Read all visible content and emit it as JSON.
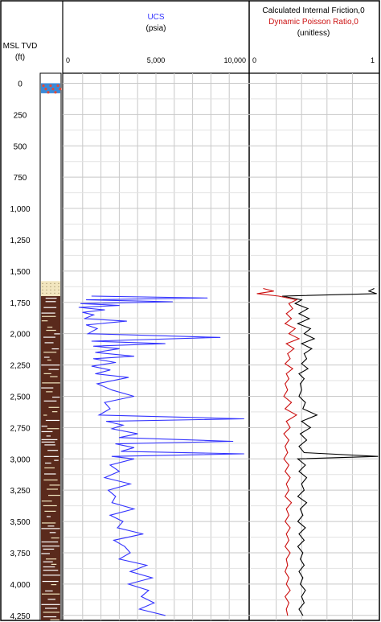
{
  "header": {
    "depth_title_line1": "MSL TVD",
    "depth_title_line2": "(ft)",
    "ucs_title": "UCS",
    "ucs_unit": "(psia)",
    "right_title_line1": "Calculated Internal Friction,0",
    "right_title_line2": "Dynamic Poisson Ratio,0",
    "right_unit": "(unitless)"
  },
  "colors": {
    "ucs": "#3333ff",
    "friction": "#000000",
    "poisson": "#cc1111",
    "lithology_sand": "#f2e6bf",
    "lithology_shale": "#5a2a1c"
  },
  "chart_data": [
    {
      "type": "line",
      "track": "depth",
      "xlabel": "MSL TVD",
      "ylabel": "(ft)",
      "depth_ticks": [
        "0",
        "250",
        "500",
        "750",
        "1,000",
        "1,250",
        "1,500",
        "1,750",
        "2,000",
        "2,250",
        "2,500",
        "2,750",
        "3,000",
        "3,250",
        "3,500",
        "3,750",
        "4,000",
        "4,250"
      ],
      "depth_tick_values": [
        0,
        250,
        500,
        750,
        1000,
        1250,
        1500,
        1750,
        2000,
        2250,
        2500,
        2750,
        3000,
        3250,
        3500,
        3750,
        4000,
        4250
      ],
      "ylim": [
        4290,
        -80
      ]
    },
    {
      "type": "line",
      "title": "UCS",
      "xlabel": "(psia)",
      "x_ticks": [
        "0",
        "5,000",
        "10,000"
      ],
      "x_tick_values": [
        0,
        5000,
        10000
      ],
      "xlim": [
        0,
        10000
      ],
      "series": [
        {
          "name": "UCS",
          "depth": [
            1700,
            1715,
            1730,
            1745,
            1760,
            1775,
            1790,
            1810,
            1830,
            1850,
            1880,
            1900,
            1930,
            1960,
            2000,
            2030,
            2060,
            2080,
            2100,
            2120,
            2150,
            2180,
            2200,
            2230,
            2260,
            2290,
            2320,
            2350,
            2400,
            2450,
            2500,
            2550,
            2600,
            2650,
            2680,
            2700,
            2730,
            2760,
            2800,
            2830,
            2860,
            2880,
            2910,
            2940,
            2960,
            2980,
            3000,
            3050,
            3100,
            3150,
            3200,
            3250,
            3300,
            3350,
            3400,
            3450,
            3500,
            3550,
            3600,
            3650,
            3700,
            3750,
            3800,
            3850,
            3900,
            3950,
            4000,
            4050,
            4100,
            4150,
            4200,
            4250
          ],
          "values": [
            1500,
            7800,
            1200,
            5900,
            900,
            3000,
            800,
            2200,
            1000,
            1600,
            1100,
            3400,
            1200,
            1800,
            1300,
            8500,
            1500,
            5500,
            1600,
            3000,
            1700,
            3800,
            1600,
            2800,
            1500,
            2500,
            1700,
            3500,
            1800,
            2600,
            3800,
            2200,
            2500,
            1900,
            9800,
            2300,
            3200,
            2600,
            4000,
            3000,
            9200,
            2800,
            3800,
            3100,
            9800,
            2600,
            3800,
            2500,
            3000,
            2200,
            3600,
            2400,
            2800,
            2600,
            3800,
            2500,
            3200,
            2900,
            4300,
            2700,
            3300,
            3600,
            3000,
            4500,
            3600,
            4800,
            3500,
            4600,
            4200,
            4900,
            4100,
            5500
          ]
        }
      ]
    },
    {
      "type": "line",
      "title": "Calculated Internal Friction,0 / Dynamic Poisson Ratio,0",
      "xlabel": "(unitless)",
      "x_ticks": [
        "0",
        "1"
      ],
      "x_tick_values": [
        0,
        1
      ],
      "xlim": [
        0,
        1
      ],
      "series": [
        {
          "name": "Calculated Internal Friction,0",
          "depth": [
            1640,
            1660,
            1680,
            1700,
            1730,
            1760,
            1800,
            1840,
            1880,
            1920,
            1960,
            2000,
            2040,
            2080,
            2120,
            2160,
            2200,
            2240,
            2280,
            2320,
            2360,
            2400,
            2450,
            2500,
            2550,
            2600,
            2650,
            2700,
            2750,
            2800,
            2850,
            2900,
            2950,
            2980,
            3000,
            3050,
            3100,
            3150,
            3200,
            3250,
            3300,
            3350,
            3400,
            3450,
            3500,
            3550,
            3600,
            3650,
            3700,
            3750,
            3800,
            3850,
            3900,
            3950,
            4000,
            4050,
            4100,
            4150,
            4200,
            4250
          ],
          "values": [
            0.97,
            0.93,
            0.99,
            0.25,
            0.4,
            0.35,
            0.45,
            0.38,
            0.46,
            0.37,
            0.47,
            0.42,
            0.5,
            0.4,
            0.48,
            0.42,
            0.44,
            0.4,
            0.45,
            0.38,
            0.42,
            0.39,
            0.4,
            0.38,
            0.43,
            0.41,
            0.52,
            0.4,
            0.47,
            0.39,
            0.44,
            0.38,
            0.42,
            1.0,
            0.37,
            0.43,
            0.38,
            0.44,
            0.4,
            0.42,
            0.37,
            0.44,
            0.39,
            0.41,
            0.37,
            0.43,
            0.38,
            0.42,
            0.37,
            0.41,
            0.39,
            0.42,
            0.38,
            0.41,
            0.39,
            0.43,
            0.4,
            0.42,
            0.38,
            0.41
          ]
        },
        {
          "name": "Dynamic Poisson Ratio,0",
          "depth": [
            1640,
            1660,
            1680,
            1700,
            1730,
            1760,
            1800,
            1840,
            1880,
            1920,
            1960,
            2000,
            2040,
            2080,
            2120,
            2160,
            2200,
            2240,
            2280,
            2320,
            2360,
            2400,
            2450,
            2500,
            2550,
            2600,
            2650,
            2700,
            2750,
            2800,
            2850,
            2900,
            2950,
            3000,
            3050,
            3100,
            3150,
            3200,
            3250,
            3300,
            3350,
            3400,
            3450,
            3500,
            3550,
            3600,
            3650,
            3700,
            3750,
            3800,
            3850,
            3900,
            3950,
            4000,
            4050,
            4100,
            4150,
            4200,
            4250
          ],
          "values": [
            0.1,
            0.18,
            0.05,
            0.22,
            0.36,
            0.3,
            0.33,
            0.28,
            0.32,
            0.27,
            0.35,
            0.3,
            0.38,
            0.28,
            0.34,
            0.29,
            0.31,
            0.27,
            0.33,
            0.28,
            0.3,
            0.27,
            0.29,
            0.26,
            0.32,
            0.27,
            0.36,
            0.28,
            0.31,
            0.26,
            0.3,
            0.27,
            0.29,
            0.26,
            0.3,
            0.27,
            0.31,
            0.28,
            0.3,
            0.27,
            0.32,
            0.28,
            0.3,
            0.27,
            0.31,
            0.28,
            0.3,
            0.27,
            0.31,
            0.28,
            0.29,
            0.27,
            0.3,
            0.28,
            0.31,
            0.27,
            0.3,
            0.28,
            0.29
          ]
        }
      ]
    },
    {
      "type": "table",
      "track": "lithology",
      "columns": [
        "from_depth",
        "to_depth",
        "lithology"
      ],
      "rows": [
        [
          0,
          80,
          "mixed"
        ],
        [
          1580,
          1700,
          "sand"
        ],
        [
          1700,
          4290,
          "shale"
        ]
      ]
    }
  ]
}
